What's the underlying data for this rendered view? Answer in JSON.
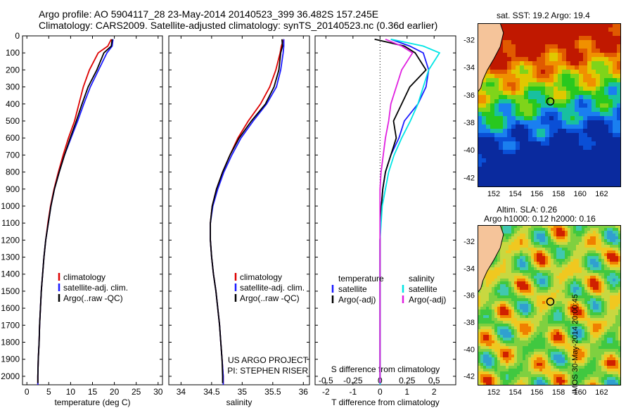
{
  "header": {
    "line1": "Argo profile: AO 5904117_28 23-May-2014 20140523_399 36.482S 157.245E",
    "line2": "Climatology: CARS2009. Satellite-adjusted climatology: synTS_20140523.nc (0.36d earlier)"
  },
  "colors": {
    "climatology": "#dd0000",
    "satellite": "#1a1aff",
    "argo": "#000000",
    "salinity_satellite": "#00e5e5",
    "salinity_argo": "#e020e0",
    "land": "#f5c49a"
  },
  "chart_data": [
    {
      "type": "line",
      "panel": "temperature",
      "xlabel": "temperature (deg C)",
      "ylabel": "",
      "xlim": [
        -1,
        31
      ],
      "ylim": [
        2050,
        0
      ],
      "xticks": [
        "0",
        "5",
        "10",
        "15",
        "20",
        "25",
        "30"
      ],
      "yticks": [
        "0",
        "100",
        "200",
        "300",
        "400",
        "500",
        "600",
        "700",
        "800",
        "900",
        "1000",
        "1100",
        "1200",
        "1300",
        "1400",
        "1500",
        "1600",
        "1700",
        "1800",
        "1900",
        "2000"
      ],
      "legend_position": "lower-left",
      "series": [
        {
          "name": "climatology",
          "color_key": "climatology",
          "points": [
            [
              19.3,
              20
            ],
            [
              18.5,
              60
            ],
            [
              16.3,
              100
            ],
            [
              14.3,
              200
            ],
            [
              12.9,
              300
            ],
            [
              11.9,
              400
            ],
            [
              10.9,
              500
            ],
            [
              9.5,
              600
            ],
            [
              8.3,
              700
            ],
            [
              7.2,
              800
            ],
            [
              6.2,
              900
            ],
            [
              5.4,
              1000
            ],
            [
              4.8,
              1100
            ],
            [
              4.3,
              1200
            ],
            [
              3.9,
              1300
            ],
            [
              3.6,
              1400
            ],
            [
              3.3,
              1500
            ],
            [
              3.1,
              1600
            ],
            [
              2.9,
              1700
            ],
            [
              2.8,
              1800
            ],
            [
              2.6,
              1900
            ],
            [
              2.5,
              2000
            ],
            [
              2.5,
              2050
            ]
          ]
        },
        {
          "name": "satellite-adj. clim.",
          "color_key": "satellite",
          "points": [
            [
              19.7,
              20
            ],
            [
              19.5,
              60
            ],
            [
              18.3,
              100
            ],
            [
              16.4,
              200
            ],
            [
              14.5,
              300
            ],
            [
              13.0,
              400
            ],
            [
              11.6,
              500
            ],
            [
              10.1,
              600
            ],
            [
              8.6,
              700
            ],
            [
              7.4,
              800
            ],
            [
              6.3,
              900
            ],
            [
              5.5,
              1000
            ],
            [
              4.9,
              1100
            ],
            [
              4.3,
              1200
            ],
            [
              3.9,
              1300
            ],
            [
              3.6,
              1400
            ],
            [
              3.3,
              1500
            ],
            [
              3.1,
              1600
            ],
            [
              2.9,
              1700
            ],
            [
              2.8,
              1800
            ],
            [
              2.6,
              1900
            ],
            [
              2.5,
              2000
            ],
            [
              2.5,
              2050
            ]
          ]
        },
        {
          "name": "Argo(..raw -QC)",
          "color_key": "argo",
          "points": [
            [
              19.5,
              20
            ],
            [
              19.3,
              60
            ],
            [
              17.6,
              100
            ],
            [
              16.0,
              200
            ],
            [
              14.0,
              300
            ],
            [
              12.6,
              400
            ],
            [
              11.3,
              500
            ],
            [
              9.9,
              600
            ],
            [
              8.6,
              700
            ],
            [
              7.4,
              800
            ],
            [
              6.3,
              900
            ],
            [
              5.5,
              1000
            ],
            [
              4.9,
              1100
            ],
            [
              4.3,
              1200
            ],
            [
              3.9,
              1300
            ],
            [
              3.6,
              1400
            ],
            [
              3.3,
              1500
            ],
            [
              3.1,
              1600
            ],
            [
              2.9,
              1700
            ],
            [
              2.8,
              1800
            ],
            [
              2.6,
              1900
            ],
            [
              2.5,
              2000
            ],
            [
              2.5,
              2040
            ]
          ]
        }
      ]
    },
    {
      "type": "line",
      "panel": "salinity",
      "xlabel": "salinity",
      "ylabel": "",
      "xlim": [
        33.8,
        36.1
      ],
      "ylim": [
        2050,
        0
      ],
      "xticks": [
        "34",
        "34.5",
        "35",
        "35.5",
        "36"
      ],
      "legend_position": "lower-right",
      "annotation": [
        "US ARGO PROJECT",
        "PI: STEPHEN RISER"
      ],
      "series": [
        {
          "name": "climatology",
          "color_key": "climatology",
          "points": [
            [
              35.68,
              20
            ],
            [
              35.64,
              60
            ],
            [
              35.62,
              100
            ],
            [
              35.55,
              200
            ],
            [
              35.45,
              300
            ],
            [
              35.3,
              400
            ],
            [
              35.1,
              500
            ],
            [
              34.93,
              600
            ],
            [
              34.8,
              700
            ],
            [
              34.68,
              800
            ],
            [
              34.58,
              900
            ],
            [
              34.51,
              1000
            ],
            [
              34.48,
              1100
            ],
            [
              34.48,
              1200
            ],
            [
              34.5,
              1300
            ],
            [
              34.53,
              1400
            ],
            [
              34.57,
              1500
            ],
            [
              34.6,
              1600
            ],
            [
              34.63,
              1700
            ],
            [
              34.65,
              1800
            ],
            [
              34.67,
              1900
            ],
            [
              34.69,
              2000
            ],
            [
              34.69,
              2050
            ]
          ]
        },
        {
          "name": "satellite-adj. clim.",
          "color_key": "satellite",
          "points": [
            [
              35.68,
              20
            ],
            [
              35.68,
              60
            ],
            [
              35.67,
              100
            ],
            [
              35.63,
              200
            ],
            [
              35.56,
              300
            ],
            [
              35.4,
              400
            ],
            [
              35.18,
              500
            ],
            [
              34.98,
              600
            ],
            [
              34.83,
              700
            ],
            [
              34.7,
              800
            ],
            [
              34.6,
              900
            ],
            [
              34.52,
              1000
            ],
            [
              34.48,
              1100
            ],
            [
              34.48,
              1200
            ],
            [
              34.5,
              1300
            ],
            [
              34.53,
              1400
            ],
            [
              34.57,
              1500
            ],
            [
              34.6,
              1600
            ],
            [
              34.63,
              1700
            ],
            [
              34.65,
              1800
            ],
            [
              34.67,
              1900
            ],
            [
              34.69,
              2000
            ],
            [
              34.69,
              2050
            ]
          ]
        },
        {
          "name": "Argo(..raw -QC)",
          "color_key": "argo",
          "points": [
            [
              35.65,
              20
            ],
            [
              35.66,
              60
            ],
            [
              35.63,
              100
            ],
            [
              35.6,
              200
            ],
            [
              35.52,
              300
            ],
            [
              35.38,
              400
            ],
            [
              35.15,
              500
            ],
            [
              34.95,
              600
            ],
            [
              34.8,
              700
            ],
            [
              34.68,
              800
            ],
            [
              34.58,
              900
            ],
            [
              34.51,
              1000
            ],
            [
              34.48,
              1100
            ],
            [
              34.48,
              1200
            ],
            [
              34.5,
              1300
            ],
            [
              34.53,
              1400
            ],
            [
              34.57,
              1500
            ],
            [
              34.6,
              1600
            ],
            [
              34.63,
              1700
            ],
            [
              34.65,
              1800
            ],
            [
              34.67,
              1900
            ],
            [
              34.68,
              2000
            ],
            [
              34.68,
              2040
            ]
          ]
        }
      ]
    },
    {
      "type": "line",
      "panel": "difference",
      "xlabel": "T difference from climatology",
      "xlabel_top": "S difference from climatology",
      "xlim": [
        -2.4,
        2.8
      ],
      "ylim": [
        2050,
        0
      ],
      "xticks": [
        "-2",
        "-1",
        "0",
        "1",
        "2"
      ],
      "xticks_top": [
        "-0.5",
        "-0.25",
        "0",
        "0.25",
        "0.5"
      ],
      "legend_position": "center",
      "legend_headers": [
        "temperature",
        "salinity"
      ],
      "series": [
        {
          "name": "satellite",
          "group": "temperature",
          "color_key": "satellite",
          "points": [
            [
              0.4,
              20
            ],
            [
              1.1,
              60
            ],
            [
              1.6,
              100
            ],
            [
              1.8,
              200
            ],
            [
              1.7,
              300
            ],
            [
              1.4,
              400
            ],
            [
              0.9,
              500
            ],
            [
              0.7,
              600
            ],
            [
              0.4,
              700
            ],
            [
              0.2,
              800
            ],
            [
              0.1,
              900
            ],
            [
              0.05,
              1000
            ],
            [
              0.02,
              1100
            ],
            [
              0,
              1200
            ],
            [
              0,
              1400
            ],
            [
              0,
              1600
            ],
            [
              0,
              1800
            ],
            [
              0,
              2000
            ],
            [
              0,
              2050
            ]
          ]
        },
        {
          "name": "Argo(-adj)",
          "group": "temperature",
          "color_key": "argo",
          "points": [
            [
              -0.2,
              20
            ],
            [
              0.9,
              60
            ],
            [
              1.3,
              100
            ],
            [
              1.7,
              200
            ],
            [
              1.1,
              300
            ],
            [
              0.8,
              400
            ],
            [
              0.5,
              500
            ],
            [
              0.6,
              600
            ],
            [
              0.4,
              700
            ],
            [
              0.2,
              800
            ],
            [
              0.1,
              900
            ],
            [
              0.05,
              1000
            ],
            [
              0.02,
              1100
            ],
            [
              0,
              1200
            ],
            [
              0,
              1400
            ],
            [
              0,
              1600
            ],
            [
              0,
              1800
            ],
            [
              0,
              2000
            ],
            [
              0,
              2040
            ]
          ]
        },
        {
          "name": "satellite",
          "group": "salinity",
          "color_key": "salinity_satellite",
          "points": [
            [
              0.1,
              20
            ],
            [
              0.4,
              60
            ],
            [
              0.55,
              100
            ],
            [
              0.45,
              200
            ],
            [
              0.4,
              300
            ],
            [
              0.35,
              400
            ],
            [
              0.28,
              500
            ],
            [
              0.2,
              600
            ],
            [
              0.13,
              700
            ],
            [
              0.08,
              800
            ],
            [
              0.05,
              900
            ],
            [
              0.02,
              1000
            ],
            [
              0,
              1200
            ],
            [
              0,
              1400
            ],
            [
              0,
              1600
            ],
            [
              0,
              1800
            ],
            [
              0,
              2000
            ],
            [
              0,
              2050
            ]
          ]
        },
        {
          "name": "Argo(-adj)",
          "group": "salinity",
          "color_key": "salinity_argo",
          "points": [
            [
              0.05,
              20
            ],
            [
              0.2,
              60
            ],
            [
              0.3,
              100
            ],
            [
              0.2,
              200
            ],
            [
              0.15,
              300
            ],
            [
              0.1,
              400
            ],
            [
              0.08,
              500
            ],
            [
              0.05,
              600
            ],
            [
              0.03,
              700
            ],
            [
              0.01,
              800
            ],
            [
              0,
              900
            ],
            [
              0,
              1200
            ],
            [
              0,
              1400
            ],
            [
              0,
              1600
            ],
            [
              0,
              1800
            ],
            [
              0,
              2000
            ],
            [
              0,
              2040
            ]
          ]
        }
      ]
    }
  ],
  "map_sst": {
    "title": "sat. SST: 19.2  Argo: 19.4",
    "yticks": [
      "-32",
      "-34",
      "-36",
      "-38",
      "-40",
      "-42"
    ],
    "xticks": [
      "152",
      "154",
      "156",
      "158",
      "160",
      "162"
    ],
    "profile_location": {
      "lon": 157.245,
      "lat": -36.482
    }
  },
  "map_sla": {
    "title_line1": "Altim. SLA: 0.26",
    "title_line2": "Argo h1000: 0.12 h2000: 0.16",
    "yticks": [
      "-32",
      "-34",
      "-36",
      "-38",
      "-40",
      "-42"
    ],
    "xticks": [
      "152",
      "154",
      "156",
      "158",
      "160",
      "162"
    ],
    "profile_location": {
      "lon": 157.245,
      "lat": -36.482
    }
  },
  "footer": {
    "stamp": "IMOS 30-May-2014 20:00:45"
  }
}
